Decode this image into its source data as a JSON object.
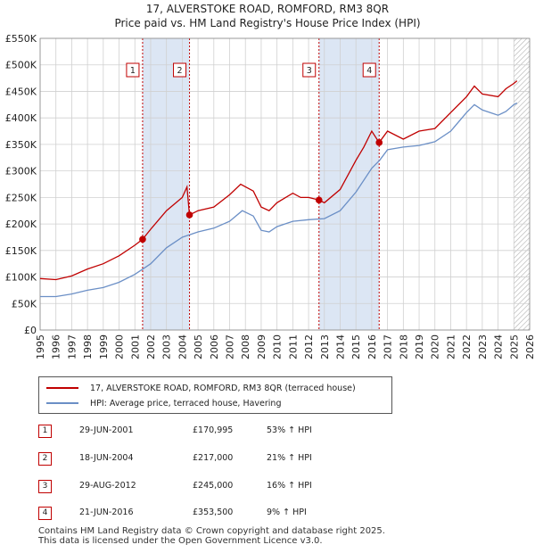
{
  "header": {
    "title": "17, ALVERSTOKE ROAD, ROMFORD, RM3 8QR",
    "subtitle": "Price paid vs. HM Land Registry's House Price Index (HPI)"
  },
  "colors": {
    "property": "#c00000",
    "hpi": "#6b8fc6",
    "shade": "#dce6f4",
    "grid": "#d0d0d0"
  },
  "chart_data": {
    "type": "line",
    "title": "Price paid vs. HM Land Registry's House Price Index (HPI)",
    "xlim": [
      1995,
      2026
    ],
    "ylim": [
      0,
      550000
    ],
    "x_ticks": [
      1995,
      1996,
      1997,
      1998,
      1999,
      2000,
      2001,
      2002,
      2003,
      2004,
      2005,
      2006,
      2007,
      2008,
      2009,
      2010,
      2011,
      2012,
      2013,
      2014,
      2015,
      2016,
      2017,
      2018,
      2019,
      2020,
      2021,
      2022,
      2023,
      2024,
      2025,
      2026
    ],
    "y_ticks": [
      0,
      50000,
      100000,
      150000,
      200000,
      250000,
      300000,
      350000,
      400000,
      450000,
      500000,
      550000
    ],
    "y_tick_labels": [
      "£0",
      "£50K",
      "£100K",
      "£150K",
      "£200K",
      "£250K",
      "£300K",
      "£350K",
      "£400K",
      "£450K",
      "£500K",
      "£550K"
    ],
    "shaded_periods": [
      [
        2001.49,
        2004.46
      ],
      [
        2012.66,
        2016.47
      ]
    ],
    "hatched_after": 2025.0,
    "series": [
      {
        "name": "17, ALVERSTOKE ROAD, ROMFORD, RM3 8QR (terraced house)",
        "color": "#c00000",
        "points": [
          [
            1995,
            97000
          ],
          [
            1996,
            95000
          ],
          [
            1997,
            102000
          ],
          [
            1998,
            115000
          ],
          [
            1999,
            125000
          ],
          [
            2000,
            140000
          ],
          [
            2001,
            160000
          ],
          [
            2001.49,
            170995
          ],
          [
            2002,
            190000
          ],
          [
            2003,
            225000
          ],
          [
            2004,
            250000
          ],
          [
            2004.3,
            270000
          ],
          [
            2004.46,
            217000
          ],
          [
            2005,
            225000
          ],
          [
            2006,
            232000
          ],
          [
            2007,
            255000
          ],
          [
            2007.7,
            275000
          ],
          [
            2008.5,
            262000
          ],
          [
            2009,
            232000
          ],
          [
            2009.5,
            225000
          ],
          [
            2010,
            240000
          ],
          [
            2011,
            258000
          ],
          [
            2011.5,
            250000
          ],
          [
            2012,
            250000
          ],
          [
            2012.66,
            245000
          ],
          [
            2013,
            240000
          ],
          [
            2014,
            265000
          ],
          [
            2015,
            320000
          ],
          [
            2015.5,
            345000
          ],
          [
            2016,
            375000
          ],
          [
            2016.47,
            353500
          ],
          [
            2017,
            375000
          ],
          [
            2018,
            360000
          ],
          [
            2019,
            375000
          ],
          [
            2020,
            380000
          ],
          [
            2021,
            410000
          ],
          [
            2022,
            440000
          ],
          [
            2022.5,
            460000
          ],
          [
            2023,
            445000
          ],
          [
            2024,
            440000
          ],
          [
            2024.5,
            455000
          ],
          [
            2025,
            465000
          ],
          [
            2025.2,
            470000
          ]
        ]
      },
      {
        "name": "HPI: Average price, terraced house, Havering",
        "color": "#6b8fc6",
        "points": [
          [
            1995,
            63000
          ],
          [
            1996,
            63000
          ],
          [
            1997,
            68000
          ],
          [
            1998,
            75000
          ],
          [
            1999,
            80000
          ],
          [
            2000,
            90000
          ],
          [
            2001,
            105000
          ],
          [
            2002,
            125000
          ],
          [
            2003,
            155000
          ],
          [
            2004,
            175000
          ],
          [
            2005,
            185000
          ],
          [
            2006,
            192000
          ],
          [
            2007,
            205000
          ],
          [
            2007.8,
            225000
          ],
          [
            2008.5,
            215000
          ],
          [
            2009,
            188000
          ],
          [
            2009.5,
            185000
          ],
          [
            2010,
            195000
          ],
          [
            2011,
            205000
          ],
          [
            2012,
            208000
          ],
          [
            2013,
            210000
          ],
          [
            2014,
            225000
          ],
          [
            2015,
            260000
          ],
          [
            2016,
            305000
          ],
          [
            2016.5,
            320000
          ],
          [
            2017,
            340000
          ],
          [
            2018,
            345000
          ],
          [
            2019,
            348000
          ],
          [
            2020,
            355000
          ],
          [
            2021,
            375000
          ],
          [
            2022,
            410000
          ],
          [
            2022.5,
            425000
          ],
          [
            2023,
            415000
          ],
          [
            2024,
            405000
          ],
          [
            2024.5,
            412000
          ],
          [
            2025,
            425000
          ],
          [
            2025.2,
            428000
          ]
        ]
      }
    ],
    "sales": [
      {
        "label": "1",
        "x": 2001.49,
        "price": 170995
      },
      {
        "label": "2",
        "x": 2004.46,
        "price": 217000
      },
      {
        "label": "3",
        "x": 2012.66,
        "price": 245000
      },
      {
        "label": "4",
        "x": 2016.47,
        "price": 353500
      }
    ]
  },
  "legend": {
    "property_label": "17, ALVERSTOKE ROAD, ROMFORD, RM3 8QR (terraced house)",
    "hpi_label": "HPI: Average price, terraced house, Havering"
  },
  "sales_table": [
    {
      "num": "1",
      "date": "29-JUN-2001",
      "price": "£170,995",
      "hpi": "53% ↑ HPI"
    },
    {
      "num": "2",
      "date": "18-JUN-2004",
      "price": "£217,000",
      "hpi": "21% ↑ HPI"
    },
    {
      "num": "3",
      "date": "29-AUG-2012",
      "price": "£245,000",
      "hpi": "16% ↑ HPI"
    },
    {
      "num": "4",
      "date": "21-JUN-2016",
      "price": "£353,500",
      "hpi": "9% ↑ HPI"
    }
  ],
  "footer": {
    "line1": "Contains HM Land Registry data © Crown copyright and database right 2025.",
    "line2": "This data is licensed under the Open Government Licence v3.0."
  }
}
